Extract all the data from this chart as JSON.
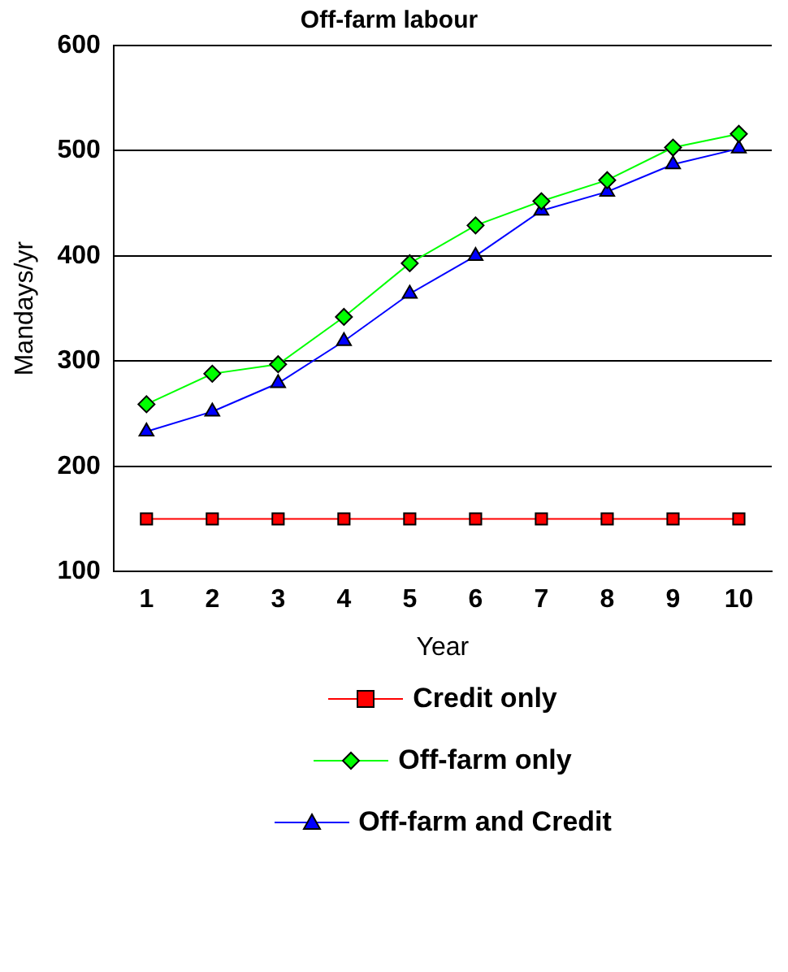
{
  "chart_data": {
    "type": "line",
    "title": "Off-farm labour",
    "xlabel": "Year",
    "ylabel": "Mandays/yr",
    "categories": [
      "1",
      "2",
      "3",
      "4",
      "5",
      "6",
      "7",
      "8",
      "9",
      "10"
    ],
    "series": [
      {
        "name": "Credit only",
        "color": "#ff0000",
        "marker": "square",
        "values": [
          150,
          150,
          150,
          150,
          150,
          150,
          150,
          150,
          150,
          150
        ]
      },
      {
        "name": "Off-farm only",
        "color": "#00ff00",
        "marker": "diamond",
        "values": [
          259,
          288,
          297,
          342,
          393,
          429,
          452,
          472,
          503,
          516
        ]
      },
      {
        "name": "Off-farm and Credit",
        "color": "#0000ff",
        "marker": "triangle",
        "values": [
          233,
          252,
          279,
          319,
          364,
          400,
          443,
          461,
          487,
          502
        ]
      }
    ],
    "ylim": [
      100,
      600
    ],
    "yticks": [
      100,
      200,
      300,
      400,
      500,
      600
    ],
    "grid": "y",
    "legend": "bottom"
  }
}
